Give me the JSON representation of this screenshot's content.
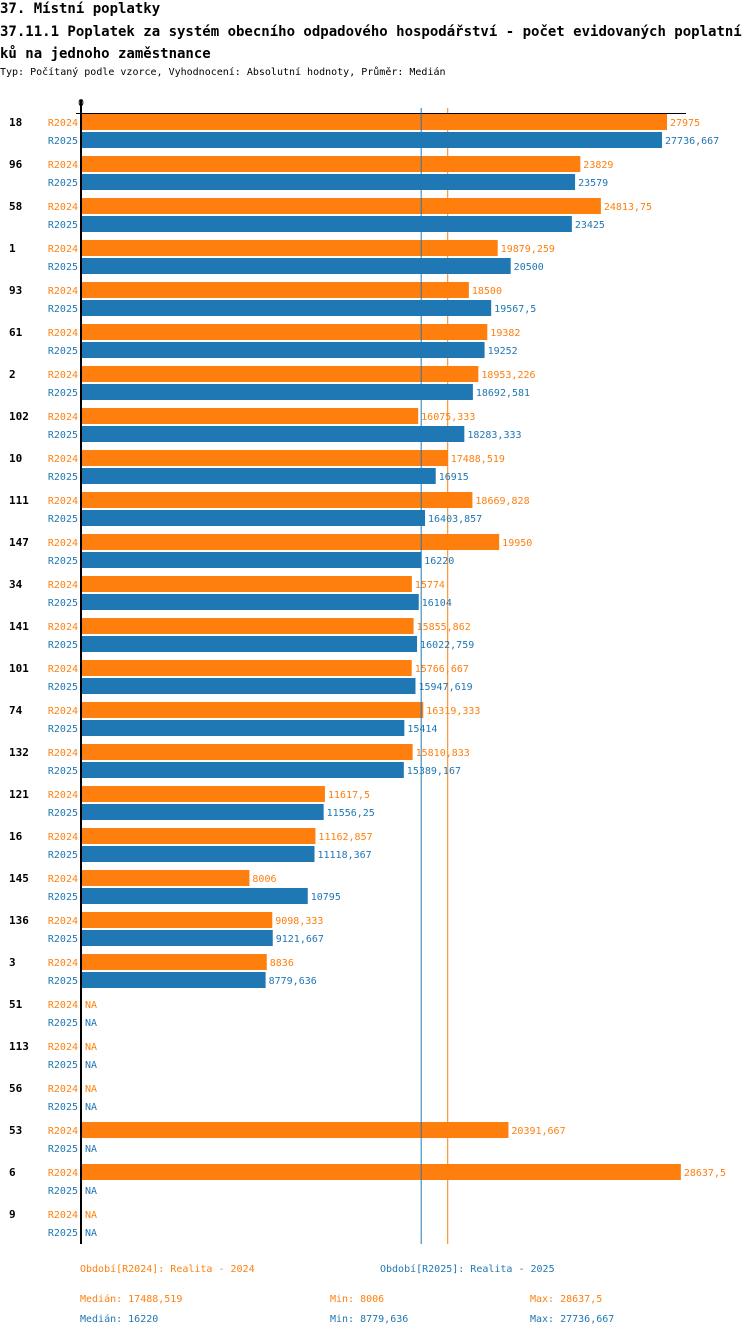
{
  "header": {
    "section_title": "37. Místní poplatky",
    "chart_title": "37.11.1 Poplatek za systém obecního odpadového hospodářství - počet evidovaných poplatníků na jednoho zaměstnance",
    "subtitle": "Typ: Počítaný podle vzorce, Vyhodnocení: Absolutní hodnoty, Průměr: Medián"
  },
  "colors": {
    "R2024": "#ff7f0e",
    "R2025": "#1f77b4",
    "axis": "#000000"
  },
  "chart_data": {
    "type": "bar",
    "orientation": "horizontal",
    "title": "37.11.1 Poplatek za systém obecního odpadového hospodářství - počet evidovaných poplatníků na jednoho zaměstnance",
    "xlabel": "",
    "ylabel": "",
    "x_tick_labels": [
      "0"
    ],
    "xlim": [
      0,
      28637.5
    ],
    "grid": false,
    "legend_position": "bottom",
    "categories": [
      "18",
      "96",
      "58",
      "1",
      "93",
      "61",
      "2",
      "102",
      "10",
      "111",
      "147",
      "34",
      "141",
      "101",
      "74",
      "132",
      "121",
      "16",
      "145",
      "136",
      "3",
      "51",
      "113",
      "56",
      "53",
      "6",
      "9"
    ],
    "series": [
      {
        "name": "R2024",
        "label": "Období[R2024]: Realita - 2024",
        "values": [
          27975,
          23829,
          24813.75,
          19879.259,
          18500,
          19382,
          18953.226,
          16075.333,
          17488.519,
          18669.828,
          19950,
          15774,
          15855.862,
          15766.667,
          16319.333,
          15810.833,
          11617.5,
          11162.857,
          8006,
          9098.333,
          8836,
          null,
          null,
          null,
          20391.667,
          28637.5,
          null
        ],
        "value_labels": [
          "27975",
          "23829",
          "24813,75",
          "19879,259",
          "18500",
          "19382",
          "18953,226",
          "16075,333",
          "17488,519",
          "18669,828",
          "19950",
          "15774",
          "15855,862",
          "15766,667",
          "16319,333",
          "15810,833",
          "11617,5",
          "11162,857",
          "8006",
          "9098,333",
          "8836",
          "NA",
          "NA",
          "NA",
          "20391,667",
          "28637,5",
          "NA"
        ],
        "median": 17488.519
      },
      {
        "name": "R2025",
        "label": "Období[R2025]: Realita - 2025",
        "values": [
          27736.667,
          23579,
          23425,
          20500,
          19567.5,
          19252,
          18692.581,
          18283.333,
          16915,
          16403.857,
          16220,
          16104,
          16022.759,
          15947.619,
          15414,
          15389.167,
          11556.25,
          11118.367,
          10795,
          9121.667,
          8779.636,
          null,
          null,
          null,
          null,
          null,
          null
        ],
        "value_labels": [
          "27736,667",
          "23579",
          "23425",
          "20500",
          "19567,5",
          "19252",
          "18692,581",
          "18283,333",
          "16915",
          "16403,857",
          "16220",
          "16104",
          "16022,759",
          "15947,619",
          "15414",
          "15389,167",
          "11556,25",
          "11118,367",
          "10795",
          "9121,667",
          "8779,636",
          "NA",
          "NA",
          "NA",
          "NA",
          "NA",
          "NA"
        ],
        "median": 16220
      }
    ],
    "annotations": [
      "Median line R2024",
      "Median line R2025"
    ]
  },
  "legend": {
    "r2024": {
      "label": "Období[R2024]: Realita - 2024",
      "median": "Medián: 17488,519",
      "min": "Min: 8006",
      "max": "Max: 28637,5"
    },
    "r2025": {
      "label": "Období[R2025]: Realita - 2025",
      "median": "Medián: 16220",
      "min": "Min: 8779,636",
      "max": "Max: 27736,667"
    }
  }
}
